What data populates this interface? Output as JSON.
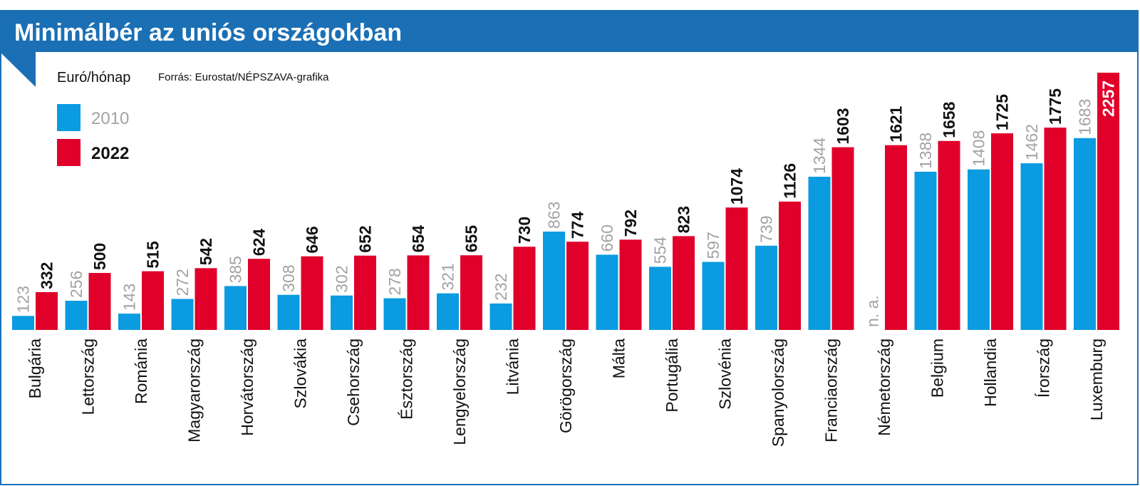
{
  "title": "Minimálbér az uniós országokban",
  "unit": "Euró/hónap",
  "source": "Forrás: Eurostat/NÉPSZAVA-grafika",
  "colors": {
    "header": "#1b6fb4",
    "s2010": "#0a9be0",
    "s2022": "#e0002a"
  },
  "chart_data": {
    "type": "bar",
    "title": "Minimálbér az uniós országokban",
    "ylabel": "Euró/hónap",
    "ylim": [
      0,
      2257
    ],
    "grid": false,
    "legend": "top-left",
    "categories": [
      "Bulgária",
      "Lettország",
      "Románia",
      "Magyarország",
      "Horvátország",
      "Szlovákia",
      "Csehország",
      "Észtország",
      "Lengyelország",
      "Litvánia",
      "Görögország",
      "Málta",
      "Portugália",
      "Szlovénia",
      "Spanyolország",
      "Franciaország",
      "Németország",
      "Belgium",
      "Hollandia",
      "Írország",
      "Luxemburg"
    ],
    "series": [
      {
        "name": "2010",
        "values": [
          123,
          256,
          143,
          272,
          385,
          308,
          302,
          278,
          321,
          232,
          863,
          660,
          554,
          597,
          739,
          1344,
          null,
          1388,
          1408,
          1462,
          1683
        ]
      },
      {
        "name": "2022",
        "values": [
          332,
          500,
          515,
          542,
          624,
          646,
          652,
          654,
          655,
          730,
          774,
          792,
          823,
          1074,
          1126,
          1603,
          1621,
          1658,
          1725,
          1775,
          2257
        ]
      }
    ],
    "missing_label": "n. a."
  }
}
